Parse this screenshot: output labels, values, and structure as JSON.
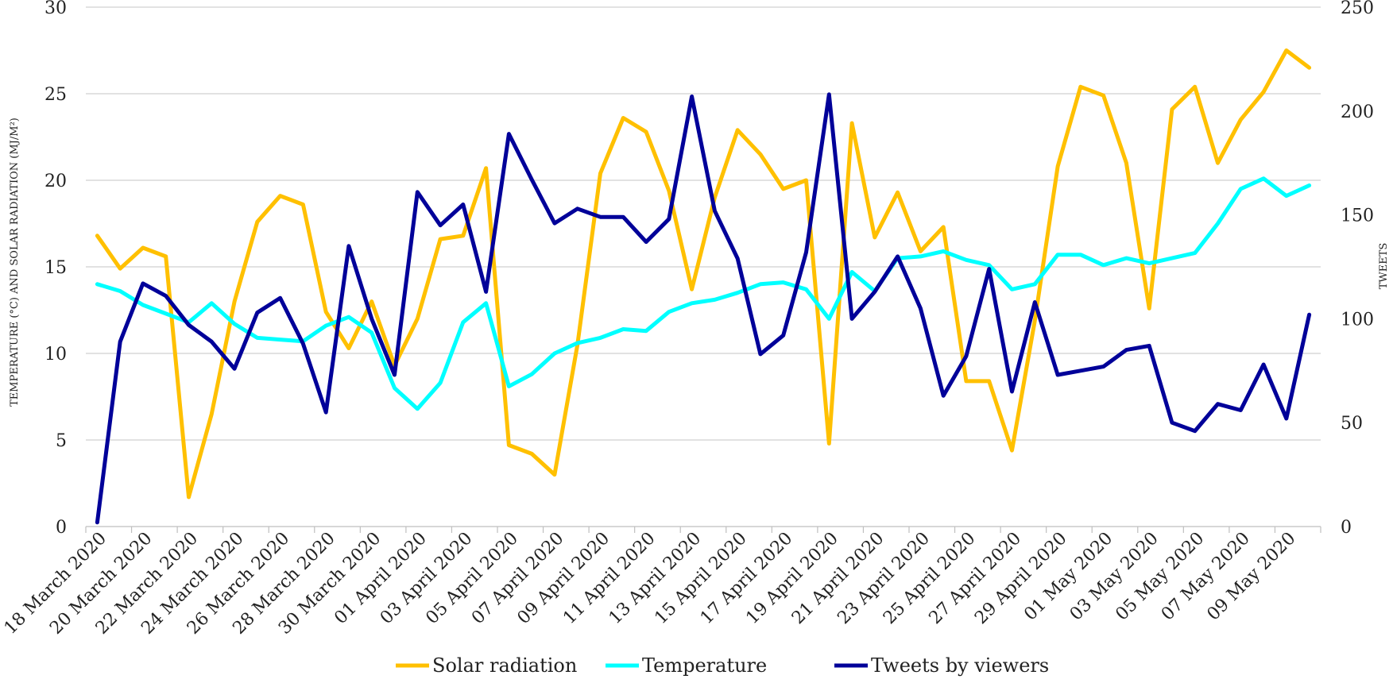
{
  "chart_data": {
    "type": "line",
    "title": "",
    "y_left_label": "TEMPERATURE (°C) AND SOLAR RADIATION (MJ/M²)",
    "y_right_label": "TWEETS",
    "y_left_range": [
      0,
      30
    ],
    "y_left_ticks": [
      "0",
      "5",
      "10",
      "15",
      "20",
      "25",
      "30"
    ],
    "y_right_range": [
      0,
      250
    ],
    "y_right_ticks": [
      "0",
      "50",
      "100",
      "150",
      "200",
      "250"
    ],
    "grid": true,
    "legend_position": "bottom",
    "x": [
      "18 March 2020",
      "19 March 2020",
      "20 March 2020",
      "21 March 2020",
      "22 March 2020",
      "23 March 2020",
      "24 March 2020",
      "25 March 2020",
      "26 March 2020",
      "27 March 2020",
      "28 March 2020",
      "29 March 2020",
      "30 March 2020",
      "31 March 2020",
      "01 April 2020",
      "02 April 2020",
      "03 April 2020",
      "04 April 2020",
      "05 April 2020",
      "06 April 2020",
      "07 April 2020",
      "08 April 2020",
      "09 April 2020",
      "10 April 2020",
      "11 April 2020",
      "12 April 2020",
      "13 April 2020",
      "14 April 2020",
      "15 April 2020",
      "16 April 2020",
      "17 April 2020",
      "18 April 2020",
      "19 April 2020",
      "20 April 2020",
      "21 April 2020",
      "22 April 2020",
      "23 April 2020",
      "24 April 2020",
      "25 April 2020",
      "26 April 2020",
      "27 April 2020",
      "28 April 2020",
      "29 April 2020",
      "30 April 2020",
      "01 May 2020",
      "02 May 2020",
      "03 May 2020",
      "04 May 2020",
      "05 May 2020",
      "06 May 2020",
      "07 May 2020",
      "08 May 2020",
      "09 May 2020",
      "10 May 2020"
    ],
    "x_tick_labels": [
      "18 March 2020",
      "20 March 2020",
      "22 March 2020",
      "24 March 2020",
      "26 March 2020",
      "28 March 2020",
      "30 March 2020",
      "01 April 2020",
      "03 April 2020",
      "05 April 2020",
      "07 April 2020",
      "09 April 2020",
      "11 April 2020",
      "13 April 2020",
      "15 April 2020",
      "17 April 2020",
      "19 April 2020",
      "21 April 2020",
      "23 April 2020",
      "25 April 2020",
      "27 April 2020",
      "29 April 2020",
      "01 May 2020",
      "03 May 2020",
      "05 May 2020",
      "07 May 2020",
      "09 May 2020"
    ],
    "series": [
      {
        "name": "Solar radiation",
        "axis": "left",
        "color": "#FFC000",
        "values": [
          16.8,
          14.9,
          16.1,
          15.6,
          1.7,
          6.5,
          13.0,
          17.6,
          19.1,
          18.6,
          12.4,
          10.3,
          13.0,
          9.3,
          12.0,
          16.6,
          16.8,
          20.7,
          4.7,
          4.2,
          3.0,
          10.5,
          20.4,
          23.6,
          22.8,
          19.4,
          13.7,
          19.0,
          22.9,
          21.5,
          19.5,
          20.0,
          4.8,
          23.3,
          16.7,
          19.3,
          15.9,
          17.3,
          8.4,
          8.4,
          4.4,
          11.9,
          20.8,
          25.4,
          24.9,
          21.0,
          12.6,
          24.1,
          25.4,
          21.0,
          23.5,
          25.1,
          27.5,
          26.5
        ]
      },
      {
        "name": "Temperature",
        "axis": "left",
        "color": "#00FFFF",
        "values": [
          14.0,
          13.6,
          12.8,
          12.3,
          11.8,
          12.9,
          11.7,
          10.9,
          10.8,
          10.7,
          11.6,
          12.1,
          11.2,
          8.0,
          6.8,
          8.3,
          11.8,
          12.9,
          8.1,
          8.8,
          10.0,
          10.6,
          10.9,
          11.4,
          11.3,
          12.4,
          12.9,
          13.1,
          13.5,
          14.0,
          14.1,
          13.7,
          12.0,
          14.7,
          13.6,
          15.5,
          15.6,
          15.9,
          15.4,
          15.1,
          13.7,
          14.0,
          15.7,
          15.7,
          15.1,
          15.5,
          15.2,
          15.5,
          15.8,
          17.5,
          19.5,
          20.1,
          19.1,
          19.7
        ]
      },
      {
        "name": "Tweets by viewers",
        "axis": "right",
        "color": "#000099",
        "values": [
          2,
          89,
          117,
          111,
          97,
          89,
          76,
          103,
          110,
          88,
          55,
          135,
          100,
          73,
          161,
          145,
          155,
          113,
          189,
          167,
          146,
          153,
          149,
          149,
          137,
          148,
          207,
          152,
          129,
          83,
          92,
          132,
          208,
          100,
          113,
          130,
          105,
          63,
          82,
          124,
          65,
          108,
          73,
          75,
          77,
          85,
          87,
          50,
          46,
          59,
          56,
          78,
          52,
          102
        ]
      }
    ]
  }
}
